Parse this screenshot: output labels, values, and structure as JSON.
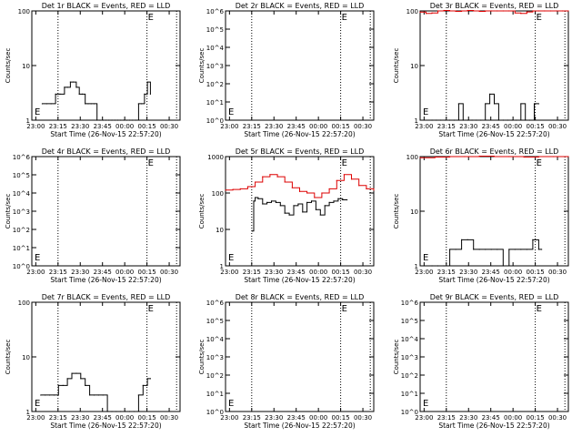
{
  "colors": {
    "events": "#000000",
    "lld": "#dd0000",
    "axis": "#000000",
    "background": "#ffffff"
  },
  "xlabel": "Start Time (26-Nov-15 22:57:20)",
  "ylabel": "Counts/sec",
  "marker_label": "E",
  "x_ticks": [
    "23:00",
    "23:15",
    "23:30",
    "23:45",
    "00:00",
    "00:15",
    "00:30"
  ],
  "x_tick_minutes": [
    2.67,
    17.67,
    32.67,
    47.67,
    62.67,
    77.67,
    92.67
  ],
  "dotted_lines_minutes": [
    17.67,
    77.67,
    97.67
  ],
  "chart_data": [
    {
      "title": "Det 1r BLACK = Events, RED = LLD",
      "type": "line",
      "y_scale": "log",
      "ylim": [
        1,
        100
      ],
      "y_ticks": [
        {
          "v": 1,
          "label": "1"
        },
        {
          "v": 10,
          "label": "10"
        },
        {
          "v": 100,
          "label": "100"
        }
      ],
      "series": [
        {
          "name": "Events",
          "color": "#000000",
          "x": [
            7,
            10,
            13,
            16,
            19,
            22,
            24,
            26,
            28,
            30,
            32,
            34,
            36,
            38,
            40,
            42,
            44,
            46,
            48,
            50,
            52,
            54,
            56,
            58,
            60,
            62,
            64,
            66,
            68,
            70,
            72,
            74,
            76,
            78,
            80
          ],
          "y": [
            2,
            2,
            2,
            3,
            3,
            4,
            4,
            5,
            5,
            4,
            3,
            3,
            2,
            2,
            2,
            2,
            1,
            1,
            1,
            1,
            1,
            1,
            1,
            1,
            1,
            1,
            1,
            1,
            1,
            1,
            2,
            2,
            3,
            5,
            3
          ]
        }
      ]
    },
    {
      "title": "Det 2r BLACK = Events, RED = LLD",
      "type": "line",
      "y_scale": "log",
      "ylim": [
        1,
        1000000
      ],
      "y_ticks": [
        {
          "v": 1,
          "label": "10^0"
        },
        {
          "v": 10,
          "label": "10^1"
        },
        {
          "v": 100,
          "label": "10^2"
        },
        {
          "v": 1000,
          "label": "10^3"
        },
        {
          "v": 10000,
          "label": "10^4"
        },
        {
          "v": 100000,
          "label": "10^5"
        },
        {
          "v": 1000000,
          "label": "10^6"
        }
      ],
      "series": []
    },
    {
      "title": "Det 3r BLACK = Events, RED = LLD",
      "type": "line",
      "y_scale": "log",
      "ylim": [
        1,
        100
      ],
      "y_ticks": [
        {
          "v": 1,
          "label": "1"
        },
        {
          "v": 10,
          "label": "10"
        },
        {
          "v": 100,
          "label": "100"
        }
      ],
      "series": [
        {
          "name": "Events",
          "color": "#000000",
          "x": [
            8,
            11,
            14,
            17,
            20,
            23,
            26,
            29,
            32,
            35,
            38,
            41,
            44,
            47,
            50,
            53,
            56,
            59,
            62,
            65,
            68,
            71,
            74,
            77,
            80
          ],
          "y": [
            1,
            1,
            1,
            1,
            1,
            1,
            2,
            1,
            1,
            1,
            1,
            1,
            2,
            3,
            2,
            1,
            1,
            1,
            1,
            1,
            2,
            1,
            1,
            2,
            2
          ]
        },
        {
          "name": "LLD",
          "color": "#dd0000",
          "x": [
            0,
            4,
            8,
            12,
            16,
            20,
            24,
            28,
            32,
            36,
            40,
            44,
            48,
            52,
            56,
            60,
            64,
            68,
            72,
            76,
            80,
            84,
            88,
            92,
            96,
            100
          ],
          "y": [
            95,
            90,
            92,
            100,
            102,
            100,
            98,
            100,
            102,
            100,
            98,
            100,
            100,
            100,
            100,
            100,
            92,
            90,
            96,
            100,
            100,
            100,
            100,
            100,
            100,
            100
          ]
        }
      ]
    },
    {
      "title": "Det 4r BLACK = Events, RED = LLD",
      "type": "line",
      "y_scale": "log",
      "ylim": [
        1,
        1000000
      ],
      "y_ticks": [
        {
          "v": 1,
          "label": "10^0"
        },
        {
          "v": 10,
          "label": "10^1"
        },
        {
          "v": 100,
          "label": "10^2"
        },
        {
          "v": 1000,
          "label": "10^3"
        },
        {
          "v": 10000,
          "label": "10^4"
        },
        {
          "v": 100000,
          "label": "10^5"
        },
        {
          "v": 1000000,
          "label": "10^6"
        }
      ],
      "series": []
    },
    {
      "title": "Det 5r BLACK = Events, RED = LLD",
      "type": "line",
      "y_scale": "log",
      "ylim": [
        1,
        1000
      ],
      "y_ticks": [
        {
          "v": 1,
          "label": "1"
        },
        {
          "v": 10,
          "label": "10"
        },
        {
          "v": 100,
          "label": "100"
        },
        {
          "v": 1000,
          "label": "1000"
        }
      ],
      "series": [
        {
          "name": "Events",
          "color": "#000000",
          "x": [
            18,
            19,
            20,
            22,
            25,
            28,
            31,
            34,
            37,
            40,
            43,
            46,
            49,
            52,
            55,
            58,
            61,
            64,
            67,
            70,
            73,
            76,
            79,
            82
          ],
          "y": [
            9,
            60,
            75,
            70,
            50,
            55,
            60,
            55,
            45,
            28,
            25,
            45,
            50,
            30,
            55,
            60,
            35,
            25,
            45,
            55,
            60,
            70,
            65,
            65
          ]
        },
        {
          "name": "LLD",
          "color": "#dd0000",
          "x": [
            0,
            5,
            10,
            15,
            20,
            25,
            30,
            35,
            40,
            45,
            50,
            55,
            60,
            65,
            70,
            75,
            80,
            85,
            90,
            95,
            100
          ],
          "y": [
            120,
            125,
            130,
            150,
            200,
            280,
            320,
            280,
            200,
            140,
            110,
            100,
            75,
            100,
            130,
            220,
            320,
            240,
            160,
            130,
            120
          ]
        }
      ]
    },
    {
      "title": "Det 6r BLACK = Events, RED = LLD",
      "type": "line",
      "y_scale": "log",
      "ylim": [
        1,
        100
      ],
      "y_ticks": [
        {
          "v": 1,
          "label": "1"
        },
        {
          "v": 10,
          "label": "10"
        },
        {
          "v": 100,
          "label": "100"
        }
      ],
      "series": [
        {
          "name": "Events",
          "color": "#000000",
          "x": [
            8,
            12,
            16,
            20,
            24,
            28,
            32,
            36,
            40,
            44,
            48,
            52,
            56,
            60,
            64,
            68,
            72,
            76,
            80,
            82
          ],
          "y": [
            1,
            1,
            1,
            2,
            2,
            3,
            3,
            2,
            2,
            2,
            2,
            2,
            1,
            2,
            2,
            2,
            2,
            3,
            2,
            2
          ]
        },
        {
          "name": "LLD",
          "color": "#dd0000",
          "x": [
            0,
            10,
            20,
            30,
            40,
            50,
            60,
            70,
            80,
            90,
            100
          ],
          "y": [
            95,
            98,
            100,
            100,
            102,
            100,
            100,
            98,
            100,
            100,
            100
          ]
        }
      ]
    },
    {
      "title": "Det 7r BLACK = Events, RED = LLD",
      "type": "line",
      "y_scale": "log",
      "ylim": [
        1,
        100
      ],
      "y_ticks": [
        {
          "v": 1,
          "label": "1"
        },
        {
          "v": 10,
          "label": "10"
        },
        {
          "v": 100,
          "label": "100"
        }
      ],
      "series": [
        {
          "name": "Events",
          "color": "#000000",
          "x": [
            6,
            9,
            12,
            15,
            18,
            21,
            24,
            27,
            30,
            33,
            36,
            39,
            42,
            45,
            48,
            51,
            54,
            57,
            60,
            63,
            66,
            69,
            72,
            75,
            78,
            80
          ],
          "y": [
            2,
            2,
            2,
            2,
            3,
            3,
            4,
            5,
            5,
            4,
            3,
            2,
            2,
            2,
            2,
            1,
            1,
            1,
            1,
            1,
            1,
            1,
            2,
            3,
            4,
            4
          ]
        }
      ]
    },
    {
      "title": "Det 8r BLACK = Events, RED = LLD",
      "type": "line",
      "y_scale": "log",
      "ylim": [
        1,
        1000000
      ],
      "y_ticks": [
        {
          "v": 1,
          "label": "10^0"
        },
        {
          "v": 10,
          "label": "10^1"
        },
        {
          "v": 100,
          "label": "10^2"
        },
        {
          "v": 1000,
          "label": "10^3"
        },
        {
          "v": 10000,
          "label": "10^4"
        },
        {
          "v": 100000,
          "label": "10^5"
        },
        {
          "v": 1000000,
          "label": "10^6"
        }
      ],
      "series": []
    },
    {
      "title": "Det 9r BLACK = Events, RED = LLD",
      "type": "line",
      "y_scale": "log",
      "ylim": [
        1,
        1000000
      ],
      "y_ticks": [
        {
          "v": 1,
          "label": "10^0"
        },
        {
          "v": 10,
          "label": "10^1"
        },
        {
          "v": 100,
          "label": "10^2"
        },
        {
          "v": 1000,
          "label": "10^3"
        },
        {
          "v": 10000,
          "label": "10^4"
        },
        {
          "v": 100000,
          "label": "10^5"
        },
        {
          "v": 1000000,
          "label": "10^6"
        }
      ],
      "series": []
    }
  ]
}
